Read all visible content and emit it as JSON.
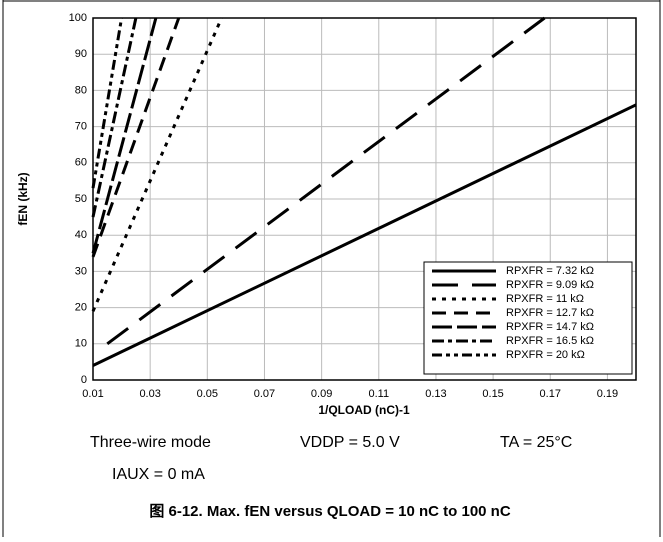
{
  "chart_data": {
    "type": "line",
    "xlabel": "1/QLOAD (nC)-1",
    "ylabel": "fEN (kHz)",
    "xlim": [
      0.01,
      0.2
    ],
    "ylim": [
      0,
      100
    ],
    "xticks": [
      0.01,
      0.03,
      0.05,
      0.07,
      0.09,
      0.11,
      0.13,
      0.15,
      0.17,
      0.19
    ],
    "yticks": [
      0,
      10,
      20,
      30,
      40,
      50,
      60,
      70,
      80,
      90,
      100
    ],
    "grid": true,
    "legend": "lower right",
    "series": [
      {
        "name": "RPXFR = 7.32 kΩ",
        "color": "#000000",
        "dash": "none",
        "x": [
          0.01,
          0.2
        ],
        "values": [
          4,
          76
        ]
      },
      {
        "name": "RPXFR = 9.09 kΩ",
        "color": "#000000",
        "dash": "26 14",
        "x": [
          0.015,
          0.168
        ],
        "values": [
          10,
          100
        ]
      },
      {
        "name": "RPXFR = 11 kΩ",
        "color": "#000000",
        "dash": "4 6",
        "x": [
          0.01,
          0.055
        ],
        "values": [
          19,
          100
        ]
      },
      {
        "name": "RPXFR = 12.7 kΩ",
        "color": "#000000",
        "dash": "14 8",
        "x": [
          0.01,
          0.04
        ],
        "values": [
          34,
          100
        ]
      },
      {
        "name": "RPXFR = 14.7 kΩ",
        "color": "#000000",
        "dash": "20 5",
        "x": [
          0.01,
          0.032
        ],
        "values": [
          35,
          100
        ]
      },
      {
        "name": "RPXFR = 16.5 kΩ",
        "color": "#000000",
        "dash": "12 4 4 4",
        "x": [
          0.01,
          0.025
        ],
        "values": [
          45,
          100
        ]
      },
      {
        "name": "RPXFR = 20 kΩ",
        "color": "#000000",
        "dash": "10 4 4 4 4 4",
        "x": [
          0.01,
          0.02
        ],
        "values": [
          53,
          100
        ]
      }
    ]
  },
  "notes": {
    "mode": "Three-wire mode",
    "vddp": "VDDP = 5.0 V",
    "ta": "TA = 25°C",
    "iaux": "IAUX = 0 mA"
  },
  "caption": "图 6-12. Max. fEN versus QLOAD = 10 nC to 100 nC"
}
